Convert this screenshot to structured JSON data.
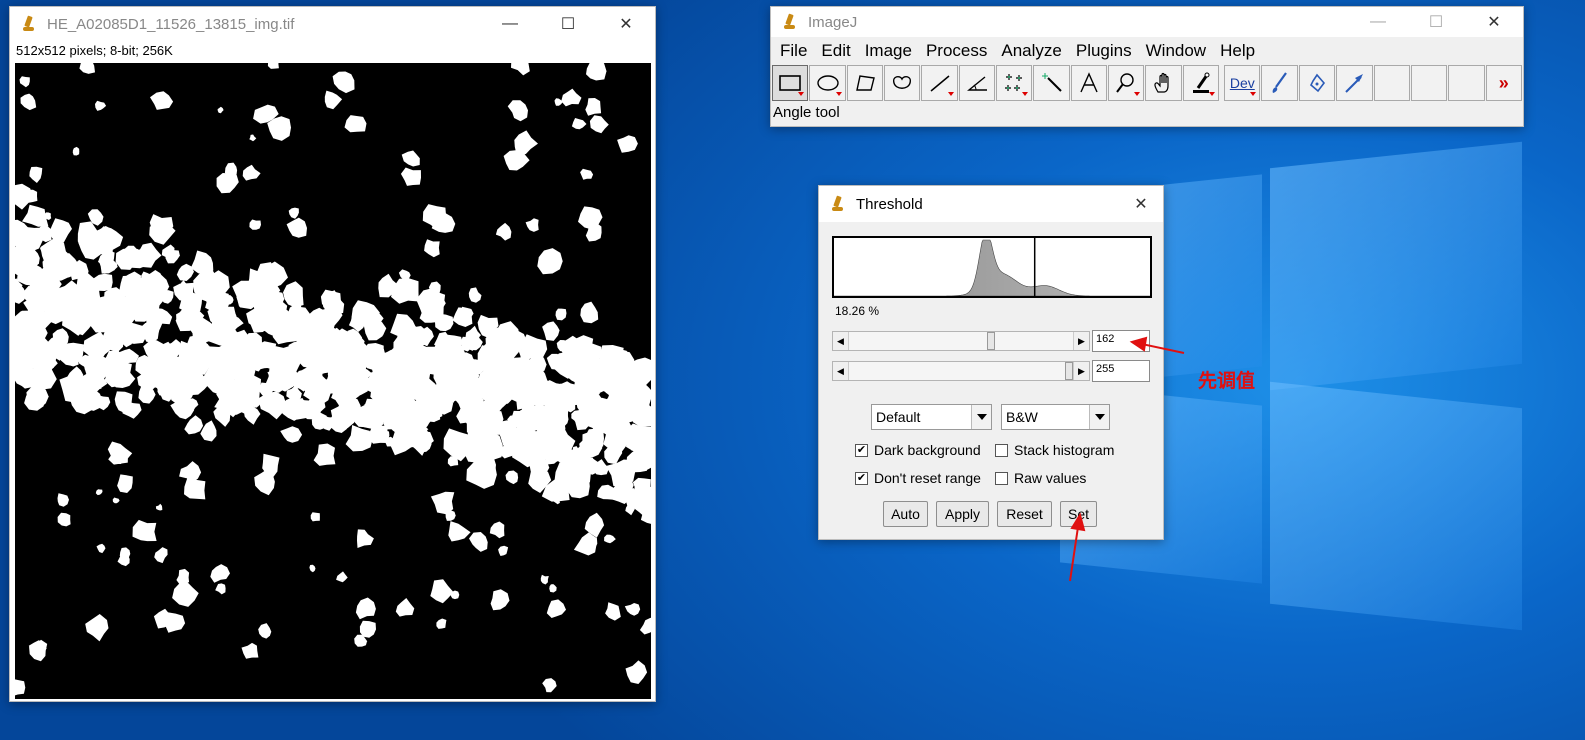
{
  "image_window": {
    "title": "HE_A02085D1_11526_13815_img.tif",
    "info": "512x512 pixels; 8-bit; 256K",
    "icon": "imagej-microscope-icon"
  },
  "imagej_window": {
    "title": "ImageJ",
    "menu": [
      "File",
      "Edit",
      "Image",
      "Process",
      "Analyze",
      "Plugins",
      "Window",
      "Help"
    ],
    "tools": [
      "rectangle",
      "oval",
      "polygon",
      "freehand",
      "line",
      "angle",
      "multipoint",
      "wand",
      "text",
      "magnifier",
      "hand",
      "eyedropper",
      "developer-menu",
      "brush",
      "flood-fill",
      "arrow",
      "empty",
      "empty",
      "empty",
      "more"
    ],
    "dev_label": "Dev",
    "status": "Angle tool"
  },
  "threshold_window": {
    "title": "Threshold",
    "percent": "18.26 %",
    "min_value": "162",
    "max_value": "255",
    "method": "Default",
    "display": "B&W",
    "dark_background": {
      "label": "Dark background",
      "checked": true
    },
    "stack_histogram": {
      "label": "Stack histogram",
      "checked": false
    },
    "dont_reset_range": {
      "label": "Don't reset range",
      "checked": true
    },
    "raw_values": {
      "label": "Raw values",
      "checked": false
    },
    "buttons": {
      "auto": "Auto",
      "apply": "Apply",
      "reset": "Reset",
      "set": "Set"
    },
    "threshold_position": 0.635
  },
  "annotation": {
    "text": "先调值",
    "color": "#e01010"
  }
}
